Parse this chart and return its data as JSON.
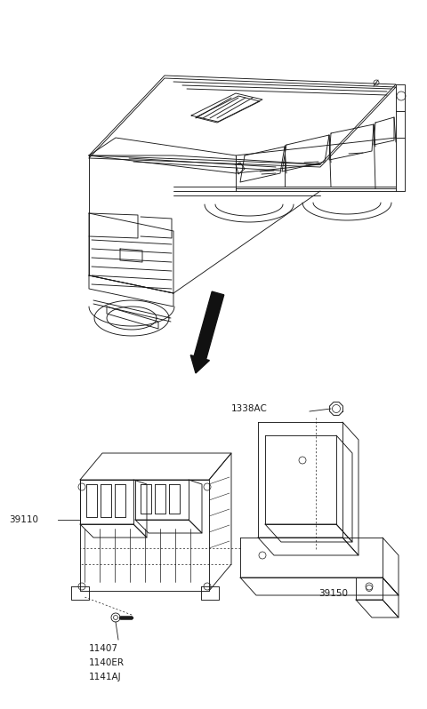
{
  "bg_color": "#ffffff",
  "line_color": "#1a1a1a",
  "dark_color": "#111111",
  "fig_width": 4.8,
  "fig_height": 7.98,
  "dpi": 100,
  "label_1338AC": "1338AC",
  "label_39110": "39110",
  "label_39150": "39150",
  "label_11407": "11407",
  "label_1140ER": "1140ER",
  "label_1141AJ": "1141AJ",
  "font_size_labels": 7.5
}
